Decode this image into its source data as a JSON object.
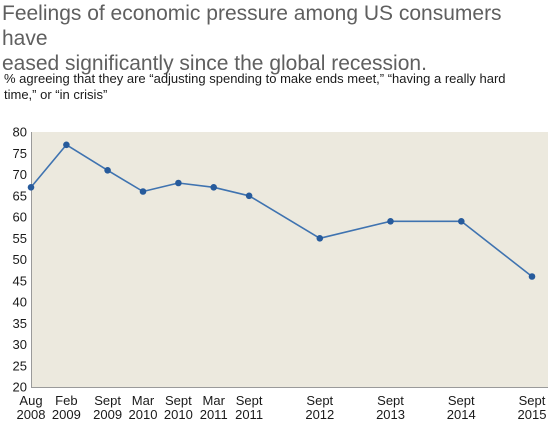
{
  "title": "Feelings of economic pressure among US consumers have\neased significantly since the global recession.",
  "subtitle": "% agreeing that they are “adjusting spending to make ends meet,” “having a really hard\ntime,” or “in crisis”",
  "colors": {
    "plot_background": "#ece9de",
    "line": "#3f73b0",
    "marker": "#275b9c",
    "axis": "#9a9a9a"
  },
  "chart_data": {
    "type": "line",
    "title": "Feelings of economic pressure among US consumers have eased significantly since the global recession.",
    "ylabel": "% agreeing that they are “adjusting spending to make ends meet,” “having a really hard time,” or “in crisis”",
    "xlabel": "",
    "ylim": [
      20,
      80
    ],
    "yticks": [
      20,
      25,
      30,
      35,
      40,
      45,
      50,
      55,
      60,
      65,
      70,
      75,
      80
    ],
    "grid": false,
    "legend": "none",
    "x": [
      "2008-08",
      "2009-02",
      "2009-09",
      "2010-03",
      "2010-09",
      "2011-03",
      "2011-09",
      "2012-09",
      "2013-09",
      "2014-09",
      "2015-09"
    ],
    "categories": [
      [
        "Aug",
        "2008"
      ],
      [
        "Feb",
        "2009"
      ],
      [
        "Sept",
        "2009"
      ],
      [
        "Mar",
        "2010"
      ],
      [
        "Sept",
        "2010"
      ],
      [
        "Mar",
        "2011"
      ],
      [
        "Sept",
        "2011"
      ],
      [
        "Sept",
        "2012"
      ],
      [
        "Sept",
        "2013"
      ],
      [
        "Sept",
        "2014"
      ],
      [
        "Sept",
        "2015"
      ]
    ],
    "series": [
      {
        "values": [
          67,
          77,
          71,
          66,
          68,
          67,
          65,
          55,
          59,
          59,
          46
        ]
      }
    ]
  }
}
